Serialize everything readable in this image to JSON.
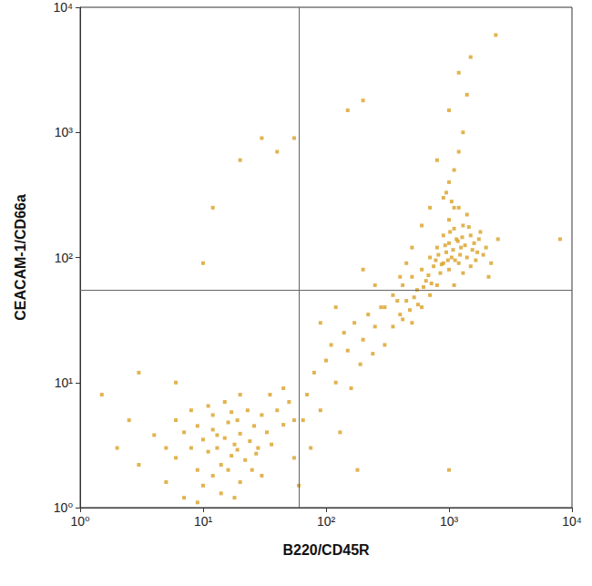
{
  "chart_data": {
    "type": "scatter",
    "xlabel": "B220/CD45R",
    "ylabel": "CEACAM-1/CD66a",
    "log": true,
    "grid": false,
    "color": "#d9a024",
    "marker": "square",
    "xlim": [
      1,
      10000
    ],
    "ylim": [
      1,
      10000
    ],
    "xticks": [
      {
        "value": 1,
        "label": "10⁰"
      },
      {
        "value": 10,
        "label": "10¹"
      },
      {
        "value": 100,
        "label": "10²"
      },
      {
        "value": 1000,
        "label": "10³"
      },
      {
        "value": 10000,
        "label": "10⁴"
      }
    ],
    "yticks": [
      {
        "value": 1,
        "label": "10⁰"
      },
      {
        "value": 10,
        "label": "10¹"
      },
      {
        "value": 100,
        "label": "10²"
      },
      {
        "value": 1000,
        "label": "10³"
      },
      {
        "value": 10000,
        "label": "10⁴"
      }
    ],
    "quadrant_x": 60,
    "quadrant_y": 55,
    "x": [
      5,
      6,
      7,
      8,
      9,
      10,
      11,
      12,
      13,
      14,
      15,
      16,
      17,
      18,
      19,
      20,
      22,
      24,
      26,
      28,
      30,
      33,
      36,
      40,
      45,
      50,
      55,
      10,
      12,
      14,
      16,
      20,
      25,
      8,
      11,
      15,
      20,
      7,
      4,
      3,
      2.5,
      2,
      1.5,
      3,
      6,
      9,
      18,
      30,
      35,
      45,
      55,
      12,
      17,
      23,
      9,
      13,
      27,
      6,
      5,
      19,
      65,
      70,
      80,
      90,
      100,
      110,
      120,
      140,
      150,
      170,
      200,
      220,
      250,
      280,
      75,
      130,
      160,
      190,
      240,
      90,
      120,
      60,
      180,
      300,
      350,
      400,
      420,
      450,
      500,
      500,
      550,
      600,
      600,
      650,
      700,
      700,
      750,
      800,
      800,
      850,
      900,
      900,
      950,
      1000,
      1000,
      1000,
      1050,
      1100,
      1100,
      1150,
      1200,
      1200,
      1250,
      1300,
      1300,
      1400,
      1400,
      1500,
      1500,
      1600,
      1700,
      1800,
      2000,
      2200,
      2500,
      900,
      1000,
      1100,
      1200,
      1300,
      1400,
      1500,
      1200,
      2400,
      1000,
      800,
      700,
      600,
      500,
      450,
      400,
      350,
      380,
      420,
      480,
      520,
      560,
      620,
      680,
      720,
      780,
      820,
      870,
      930,
      980,
      1020,
      1080,
      1120,
      1180,
      1230,
      1280,
      1350,
      1450,
      1550,
      1650,
      1750,
      1900,
      2100,
      1100,
      950,
      1050,
      300,
      250,
      200,
      150,
      200,
      30,
      40,
      20,
      12,
      10,
      8000,
      1000,
      55
    ],
    "values": [
      3,
      2.5,
      4,
      3,
      2,
      3.5,
      2.8,
      4.2,
      3,
      2.2,
      3.6,
      4.8,
      2.6,
      3.2,
      5,
      3.9,
      2.4,
      3.4,
      4.5,
      3,
      5.5,
      4,
      3.2,
      6,
      4.6,
      7,
      5,
      1.5,
      1.8,
      1.3,
      2,
      1.6,
      2,
      6,
      6.5,
      7,
      8,
      1.2,
      3.8,
      2.2,
      5,
      3,
      8,
      12,
      10,
      1.1,
      1.2,
      1.8,
      8,
      9,
      2.5,
      5.5,
      5.8,
      6,
      4.5,
      3.8,
      2.7,
      5,
      1.6,
      2.9,
      5,
      8,
      12,
      6,
      15,
      20,
      10,
      25,
      18,
      30,
      22,
      35,
      28,
      40,
      3,
      4,
      9,
      14,
      17,
      30,
      40,
      1.5,
      2,
      40,
      50,
      35,
      60,
      45,
      70,
      30,
      55,
      80,
      40,
      65,
      100,
      50,
      85,
      120,
      60,
      75,
      150,
      90,
      110,
      200,
      130,
      80,
      100,
      170,
      60,
      140,
      250,
      90,
      120,
      180,
      75,
      100,
      220,
      150,
      85,
      130,
      110,
      160,
      120,
      90,
      140,
      300,
      400,
      500,
      700,
      1000,
      2000,
      4000,
      3000,
      6000,
      1500,
      600,
      250,
      180,
      120,
      90,
      70,
      28,
      45,
      32,
      38,
      48,
      42,
      58,
      72,
      62,
      95,
      105,
      88,
      125,
      95,
      160,
      115,
      95,
      135,
      105,
      145,
      125,
      175,
      115,
      95,
      140,
      105,
      70,
      250,
      330,
      280,
      20,
      60,
      80,
      1500,
      1800,
      900,
      700,
      600,
      250,
      90,
      140,
      2,
      900
    ]
  }
}
